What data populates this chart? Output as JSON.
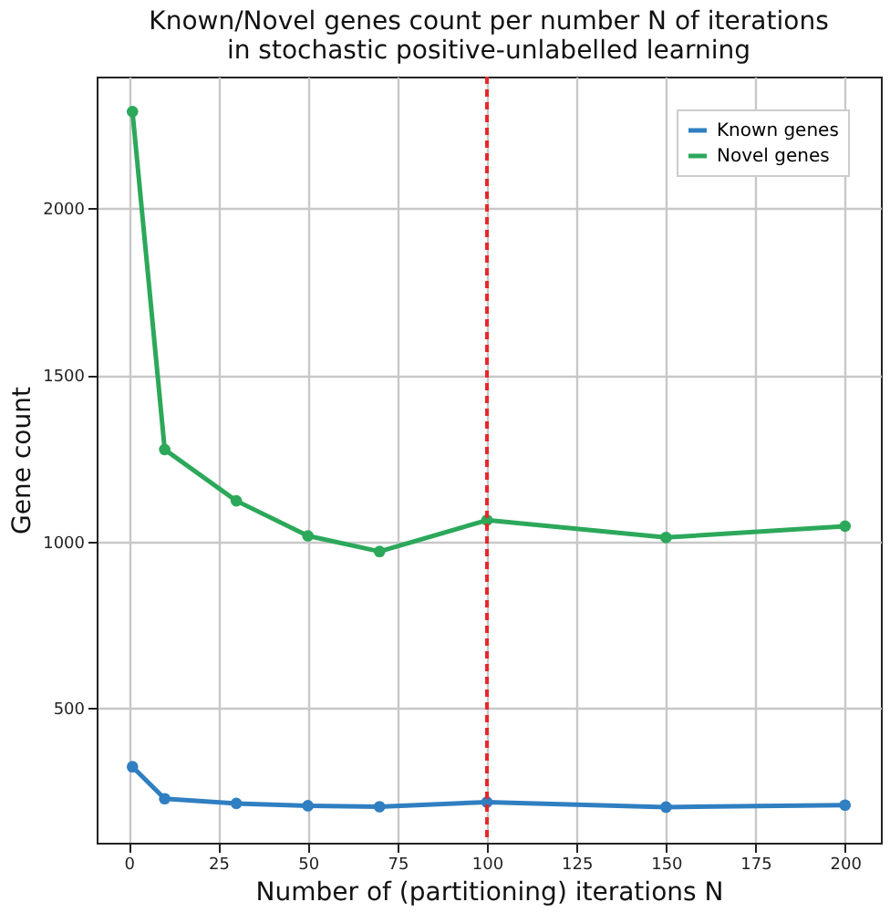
{
  "chart_data": {
    "type": "line",
    "title": "Known/Novel genes count per number N of iterations\nin stochastic positive-unlabelled learning",
    "xlabel": "Number of (partitioning) iterations N",
    "ylabel": "Gene count",
    "x": [
      1,
      10,
      30,
      50,
      70,
      100,
      150,
      200
    ],
    "series": [
      {
        "name": "Known genes",
        "color": "#2f7fc1",
        "values": [
          324,
          228,
          214,
          207,
          204,
          218,
          203,
          209
        ]
      },
      {
        "name": "Novel genes",
        "color": "#2ca85a",
        "values": [
          2290,
          1276,
          1122,
          1017,
          970,
          1064,
          1012,
          1046
        ]
      }
    ],
    "xlim": [
      -9,
      210
    ],
    "xticks": [
      0,
      25,
      50,
      75,
      100,
      125,
      150,
      175,
      200
    ],
    "ylim": [
      96,
      2395
    ],
    "yticks": [
      500,
      1000,
      1500,
      2000
    ],
    "grid": true,
    "legend": "top right",
    "marker": "circle",
    "line_style": "solid",
    "ref_lines": [
      {
        "axis": "x",
        "value": 100,
        "color": "#e8262a",
        "line_style": "dashed"
      }
    ]
  }
}
